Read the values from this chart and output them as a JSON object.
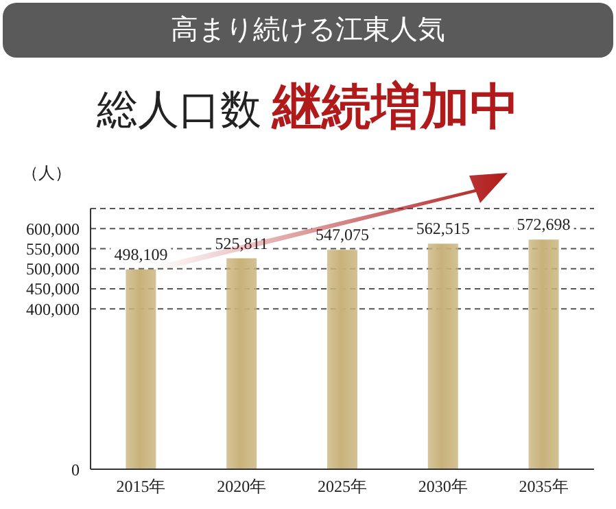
{
  "chart_data": {
    "type": "bar",
    "title": "高まり続ける江東人気",
    "subtitle": "総人口数 継続増加中",
    "ylabel": "（人）",
    "categories": [
      "2015年",
      "2020年",
      "2025年",
      "2030年",
      "2035年"
    ],
    "values": [
      498109,
      525811,
      547075,
      562515,
      572698
    ],
    "value_labels": [
      "498,109",
      "525,811",
      "547,075",
      "562,515",
      "572,698"
    ],
    "color": "#c8b27a",
    "ylim": [
      0,
      650000
    ],
    "yticks": [
      0,
      {
        "value": 400000,
        "label": "400,000"
      },
      {
        "value": 450000,
        "label": "450,000"
      },
      {
        "value": 500000,
        "label": "500,000"
      },
      {
        "value": 550000,
        "label": "550,000"
      },
      {
        "value": 600000,
        "label": "600,000"
      }
    ],
    "grid": "y"
  }
}
